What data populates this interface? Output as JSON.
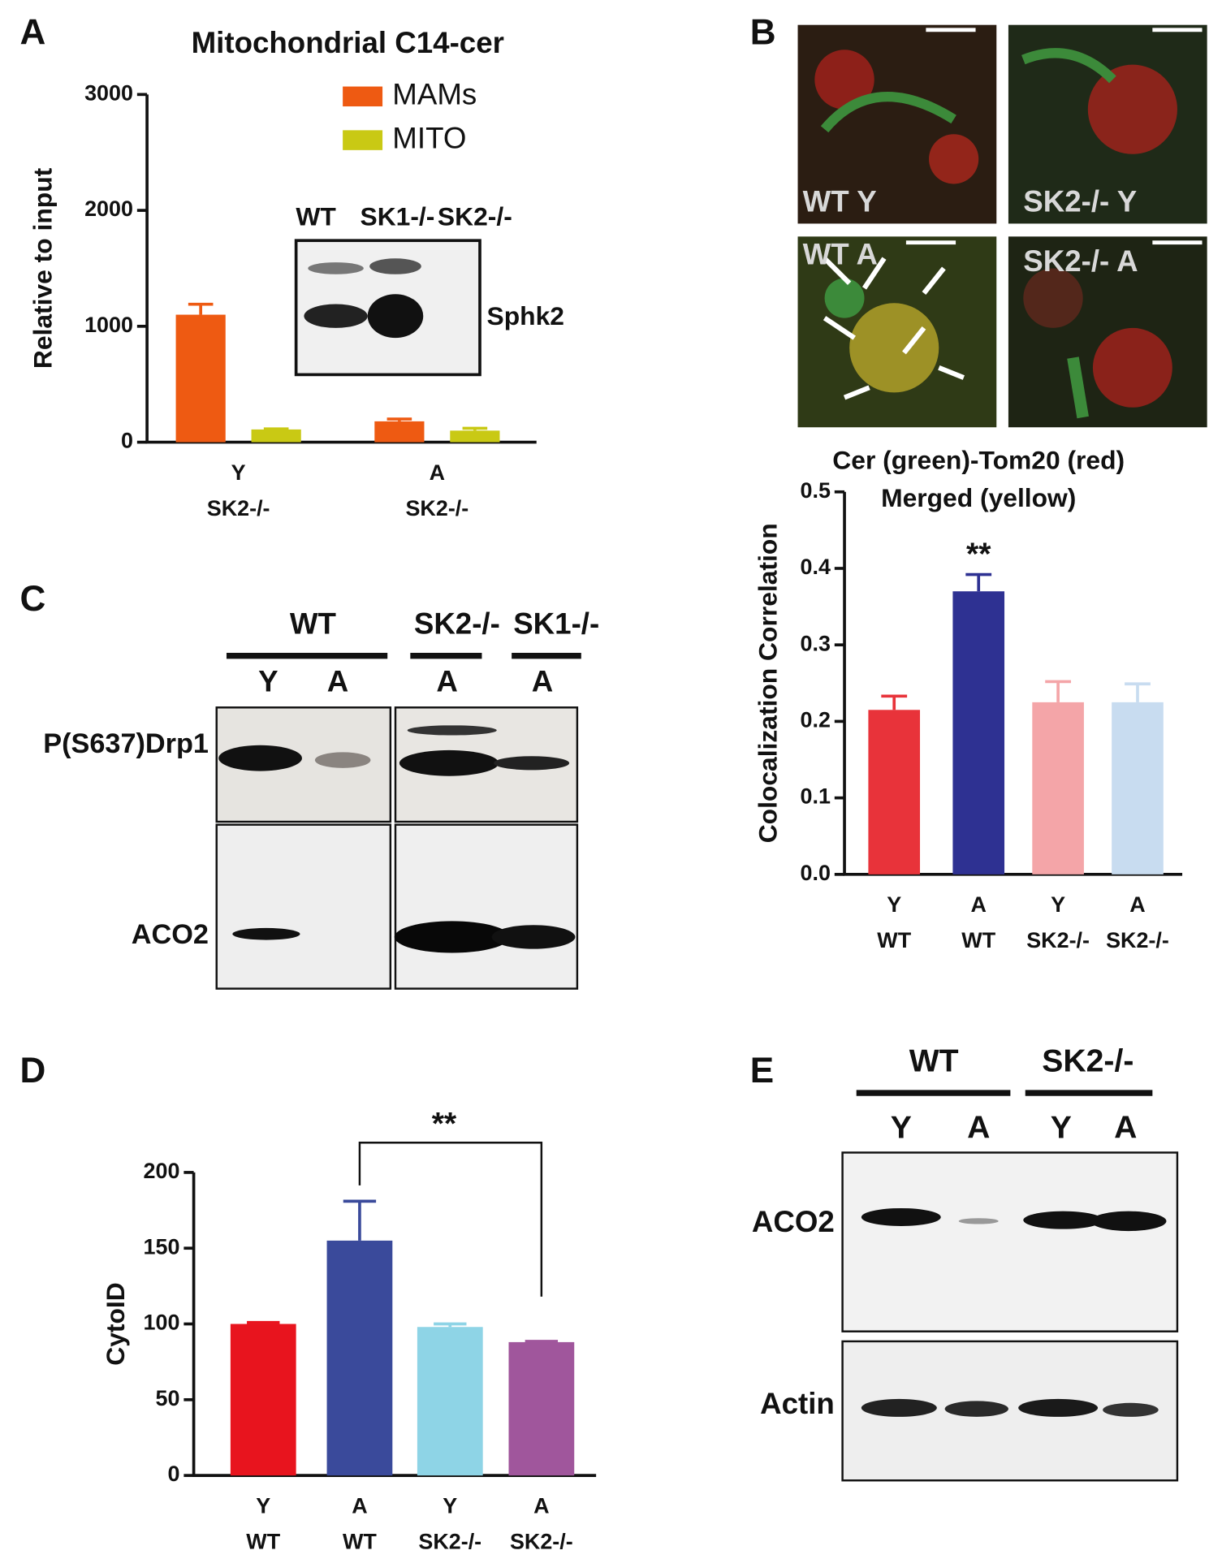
{
  "chart_data": [
    {
      "type": "bar",
      "title": "Mitochondrial C14-cer",
      "y_label": "Relative to input",
      "categories": [
        [
          "Y",
          "SK2-/-"
        ],
        [
          "A",
          "SK2-/-"
        ]
      ],
      "series": [
        {
          "name": "MAMs",
          "color": "#ee5a12",
          "values": [
            1100,
            180
          ],
          "errors": [
            90,
            20
          ]
        },
        {
          "name": "MITO",
          "color": "#c9c914",
          "values": [
            110,
            100
          ],
          "errors": [
            5,
            20
          ]
        }
      ],
      "ylim": [
        0,
        3000
      ],
      "yticks": [
        0,
        1000,
        2000,
        3000
      ]
    },
    {
      "type": "bar",
      "title": [
        "Cer (green)-Tom20 (red)",
        "Merged (yellow)"
      ],
      "y_label": "Colocalization Correlation",
      "categories": [
        [
          "Y",
          "WT"
        ],
        [
          "A",
          "WT"
        ],
        [
          "Y",
          "SK2-/-"
        ],
        [
          "A",
          "SK2-/-"
        ]
      ],
      "values": [
        0.215,
        0.37,
        0.225,
        0.225
      ],
      "errors": [
        0.018,
        0.022,
        0.027,
        0.024
      ],
      "colors": [
        "#e8333a",
        "#2e3192",
        "#f4a5a8",
        "#c8dcf0"
      ],
      "annotation": "**",
      "ylim": [
        0,
        0.5
      ],
      "yticks": [
        {
          "value": 0,
          "label": "0.0"
        },
        0.1,
        0.2,
        0.3,
        0.4,
        0.5
      ]
    },
    {
      "type": "bar",
      "y_label": "CytoID",
      "categories": [
        [
          "Y",
          "WT"
        ],
        [
          "A",
          "WT"
        ],
        [
          "Y",
          "SK2-/-"
        ],
        [
          "A",
          "SK2-/-"
        ]
      ],
      "values": [
        100,
        155,
        98,
        88
      ],
      "errors": [
        1,
        26,
        2,
        0.5
      ],
      "colors": [
        "#e8141e",
        "#3a4a9b",
        "#8ed4e6",
        "#a0569c"
      ],
      "annotation": "**",
      "ylim": [
        0,
        200
      ],
      "yticks": [
        0,
        50,
        100,
        150,
        200
      ]
    }
  ],
  "panels": {
    "A": {
      "label": "A",
      "inset": {
        "lanes": [
          "WT",
          "SK1-/-",
          "SK2-/-"
        ],
        "protein": "Sphk2"
      }
    },
    "B": {
      "label": "B",
      "images": [
        "WT Y",
        "SK2-/- Y",
        "WT A",
        "SK2-/- A"
      ]
    },
    "C": {
      "label": "C",
      "groups": [
        "WT",
        "SK2-/-",
        "SK1-/-"
      ],
      "lanes": [
        "Y",
        "A",
        "A",
        "A"
      ],
      "rows": [
        "P(S637)Drp1",
        "ACO2"
      ]
    },
    "D": {
      "label": "D"
    },
    "E": {
      "label": "E",
      "groups": [
        "WT",
        "SK2-/-"
      ],
      "lanes": [
        "Y",
        "A",
        "Y",
        "A"
      ],
      "rows": [
        "ACO2",
        "Actin"
      ]
    }
  }
}
